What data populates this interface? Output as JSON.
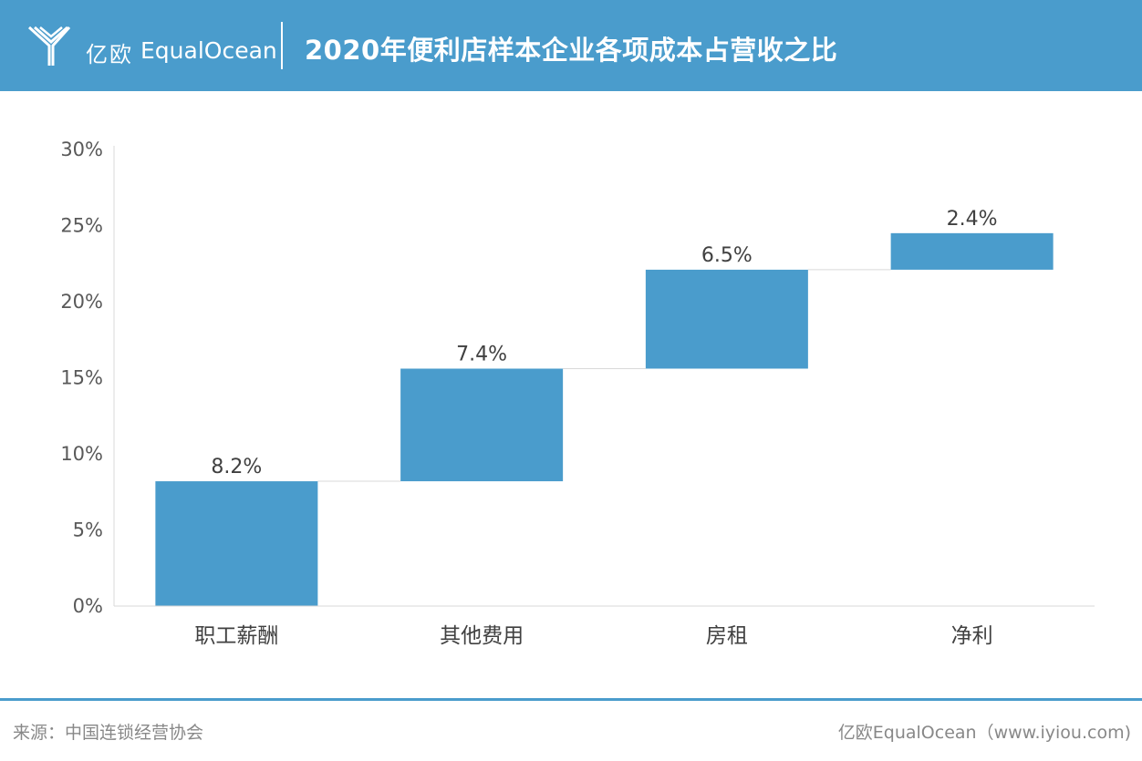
{
  "header": {
    "logo_cn": "亿欧",
    "logo_en": "EqualOcean",
    "title": "2020年便利店样本企业各项成本占营收之比",
    "bg_color": "#4a9ccc"
  },
  "chart_data": {
    "type": "bar",
    "subtype": "waterfall",
    "categories": [
      "职工薪酬",
      "其他费用",
      "房租",
      "净利"
    ],
    "values": [
      8.2,
      7.4,
      6.5,
      2.4
    ],
    "value_labels": [
      "8.2%",
      "7.4%",
      "6.5%",
      "2.4%"
    ],
    "ylim": [
      0,
      30
    ],
    "yticks": [
      0,
      5,
      10,
      15,
      20,
      25,
      30
    ],
    "ytick_labels": [
      "0%",
      "5%",
      "10%",
      "15%",
      "20%",
      "25%",
      "30%"
    ],
    "grid": false,
    "bar_color": "#4a9ccc",
    "connector_color": "#d9d9d9"
  },
  "footer": {
    "source": "来源：中国连锁经营协会",
    "credit": "亿欧EqualOcean（www.iyiou.com)"
  }
}
